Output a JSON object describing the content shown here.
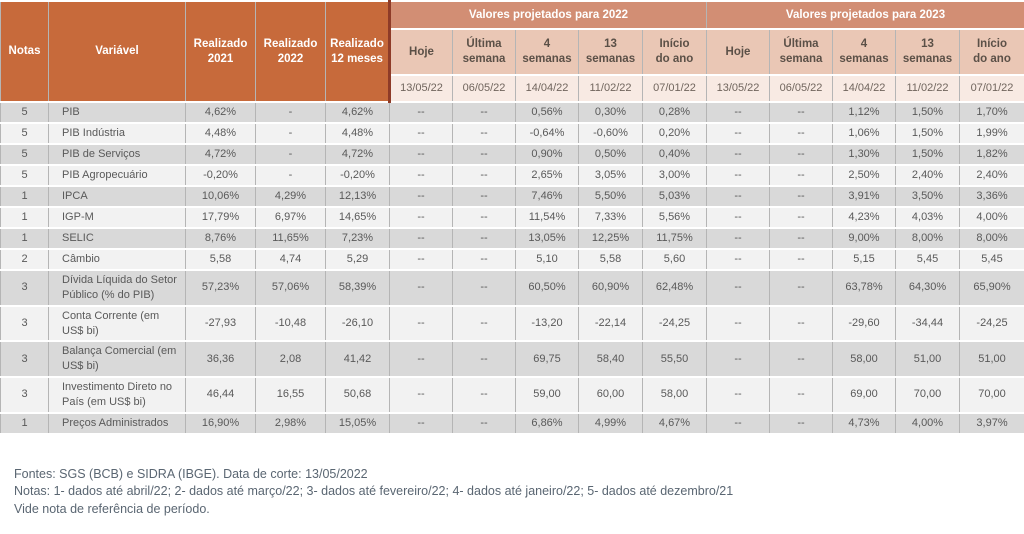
{
  "table": {
    "left_headers": [
      "Notas",
      "Variável",
      "Realizado\n2021",
      "Realizado\n2022",
      "Realizado\n12 meses"
    ],
    "sections": [
      {
        "title": "Valores projetados para 2022"
      },
      {
        "title": "Valores projetados para 2023"
      }
    ],
    "sub_headers": [
      "Hoje",
      "Última\nsemana",
      "4\nsemanas",
      "13\nsemanas",
      "Início\ndo ano"
    ],
    "dates": [
      "13/05/22",
      "06/05/22",
      "14/04/22",
      "11/02/22",
      "07/01/22"
    ],
    "rows": [
      {
        "nota": "5",
        "variavel": "PIB",
        "r2021": "4,62%",
        "r2022": "-",
        "r12m": "4,62%",
        "p2022": [
          "--",
          "--",
          "0,56%",
          "0,30%",
          "0,28%"
        ],
        "p2023": [
          "--",
          "--",
          "1,12%",
          "1,50%",
          "1,70%"
        ]
      },
      {
        "nota": "5",
        "variavel": "PIB Indústria",
        "r2021": "4,48%",
        "r2022": "-",
        "r12m": "4,48%",
        "p2022": [
          "--",
          "--",
          "-0,64%",
          "-0,60%",
          "0,20%"
        ],
        "p2023": [
          "--",
          "--",
          "1,06%",
          "1,50%",
          "1,99%"
        ]
      },
      {
        "nota": "5",
        "variavel": "PIB de Serviços",
        "r2021": "4,72%",
        "r2022": "-",
        "r12m": "4,72%",
        "p2022": [
          "--",
          "--",
          "0,90%",
          "0,50%",
          "0,40%"
        ],
        "p2023": [
          "--",
          "--",
          "1,30%",
          "1,50%",
          "1,82%"
        ]
      },
      {
        "nota": "5",
        "variavel": "PIB Agropecuário",
        "r2021": "-0,20%",
        "r2022": "-",
        "r12m": "-0,20%",
        "p2022": [
          "--",
          "--",
          "2,65%",
          "3,05%",
          "3,00%"
        ],
        "p2023": [
          "--",
          "--",
          "2,50%",
          "2,40%",
          "2,40%"
        ]
      },
      {
        "nota": "1",
        "variavel": "IPCA",
        "r2021": "10,06%",
        "r2022": "4,29%",
        "r12m": "12,13%",
        "p2022": [
          "--",
          "--",
          "7,46%",
          "5,50%",
          "5,03%"
        ],
        "p2023": [
          "--",
          "--",
          "3,91%",
          "3,50%",
          "3,36%"
        ]
      },
      {
        "nota": "1",
        "variavel": "IGP-M",
        "r2021": "17,79%",
        "r2022": "6,97%",
        "r12m": "14,65%",
        "p2022": [
          "--",
          "--",
          "11,54%",
          "7,33%",
          "5,56%"
        ],
        "p2023": [
          "--",
          "--",
          "4,23%",
          "4,03%",
          "4,00%"
        ]
      },
      {
        "nota": "1",
        "variavel": "SELIC",
        "r2021": "8,76%",
        "r2022": "11,65%",
        "r12m": "7,23%",
        "p2022": [
          "--",
          "--",
          "13,05%",
          "12,25%",
          "11,75%"
        ],
        "p2023": [
          "--",
          "--",
          "9,00%",
          "8,00%",
          "8,00%"
        ]
      },
      {
        "nota": "2",
        "variavel": "Câmbio",
        "r2021": "5,58",
        "r2022": "4,74",
        "r12m": "5,29",
        "p2022": [
          "--",
          "--",
          "5,10",
          "5,58",
          "5,60"
        ],
        "p2023": [
          "--",
          "--",
          "5,15",
          "5,45",
          "5,45"
        ]
      },
      {
        "nota": "3",
        "variavel": "Dívida Líquida do Setor Público (% do PIB)",
        "r2021": "57,23%",
        "r2022": "57,06%",
        "r12m": "58,39%",
        "p2022": [
          "--",
          "--",
          "60,50%",
          "60,90%",
          "62,48%"
        ],
        "p2023": [
          "--",
          "--",
          "63,78%",
          "64,30%",
          "65,90%"
        ]
      },
      {
        "nota": "3",
        "variavel": "Conta Corrente (em US$ bi)",
        "r2021": "-27,93",
        "r2022": "-10,48",
        "r12m": "-26,10",
        "p2022": [
          "--",
          "--",
          "-13,20",
          "-22,14",
          "-24,25"
        ],
        "p2023": [
          "--",
          "--",
          "-29,60",
          "-34,44",
          "-24,25"
        ]
      },
      {
        "nota": "3",
        "variavel": "Balança Comercial (em US$ bi)",
        "r2021": "36,36",
        "r2022": "2,08",
        "r12m": "41,42",
        "p2022": [
          "--",
          "--",
          "69,75",
          "58,40",
          "55,50"
        ],
        "p2023": [
          "--",
          "--",
          "58,00",
          "51,00",
          "51,00"
        ]
      },
      {
        "nota": "3",
        "variavel": "Investimento Direto no País (em US$ bi)",
        "r2021": "46,44",
        "r2022": "16,55",
        "r12m": "50,68",
        "p2022": [
          "--",
          "--",
          "59,00",
          "60,00",
          "58,00"
        ],
        "p2023": [
          "--",
          "--",
          "69,00",
          "70,00",
          "70,00"
        ]
      },
      {
        "nota": "1",
        "variavel": "Preços Administrados",
        "r2021": "16,90%",
        "r2022": "2,98%",
        "r12m": "15,05%",
        "p2022": [
          "--",
          "--",
          "6,86%",
          "4,99%",
          "4,67%"
        ],
        "p2023": [
          "--",
          "--",
          "4,73%",
          "4,00%",
          "3,97%"
        ]
      }
    ]
  },
  "footer": {
    "fontes": "Fontes: SGS (BCB) e SIDRA (IBGE). Data de corte: 13/05/2022",
    "notas": "Notas: 1- dados até abril/22; 2- dados até março/22; 3- dados até fevereiro/22; 4- dados até janeiro/22; 5- dados até dezembro/21",
    "vide": "Vide nota de referência de período."
  },
  "colors": {
    "header_orange": "#C76A3B",
    "section_salmon": "#D28E74",
    "subheader_pink": "#EAC7B5",
    "date_row_pink": "#F8EAE3",
    "row_dark": "#D9D9D9",
    "row_light": "#F2F2F2",
    "section_divider_maroon": "#8E3B28",
    "body_text": "#595959",
    "footer_text": "#5a6672"
  }
}
